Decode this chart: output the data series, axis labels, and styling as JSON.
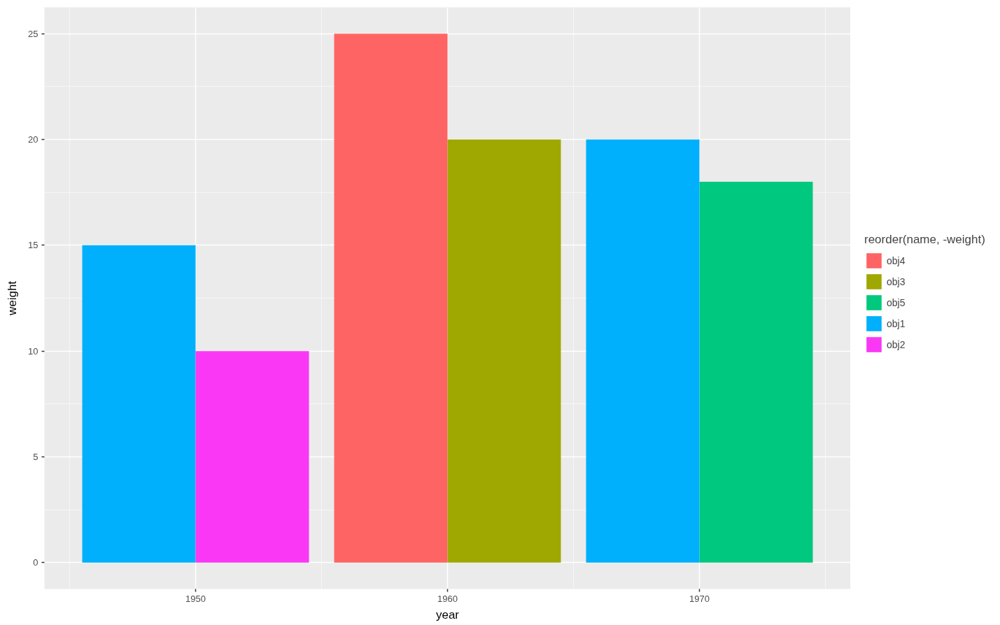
{
  "chart_data": {
    "type": "bar",
    "xlabel": "year",
    "ylabel": "weight",
    "legend_title": "reorder(name, -weight)",
    "xlim": [
      1944,
      1976
    ],
    "xticks": [
      1950,
      1960,
      1970
    ],
    "ylim": [
      -1.25,
      26.25
    ],
    "yticks": [
      0,
      5,
      10,
      15,
      20,
      25
    ],
    "grid": true,
    "legend": "right",
    "series": [
      {
        "name": "obj4",
        "color": "#ff6464",
        "x": [
          1957.75
        ],
        "values": [
          25
        ]
      },
      {
        "name": "obj3",
        "color": "#9fa800",
        "x": [
          1962.25
        ],
        "values": [
          20
        ]
      },
      {
        "name": "obj5",
        "color": "#00c87e",
        "x": [
          1972.25
        ],
        "values": [
          18
        ]
      },
      {
        "name": "obj1",
        "color": "#00b0fc",
        "x": [
          1947.75,
          1967.75
        ],
        "values": [
          15,
          20
        ]
      },
      {
        "name": "obj2",
        "color": "#fb37f6",
        "x": [
          1952.25
        ],
        "values": [
          10
        ]
      }
    ]
  }
}
